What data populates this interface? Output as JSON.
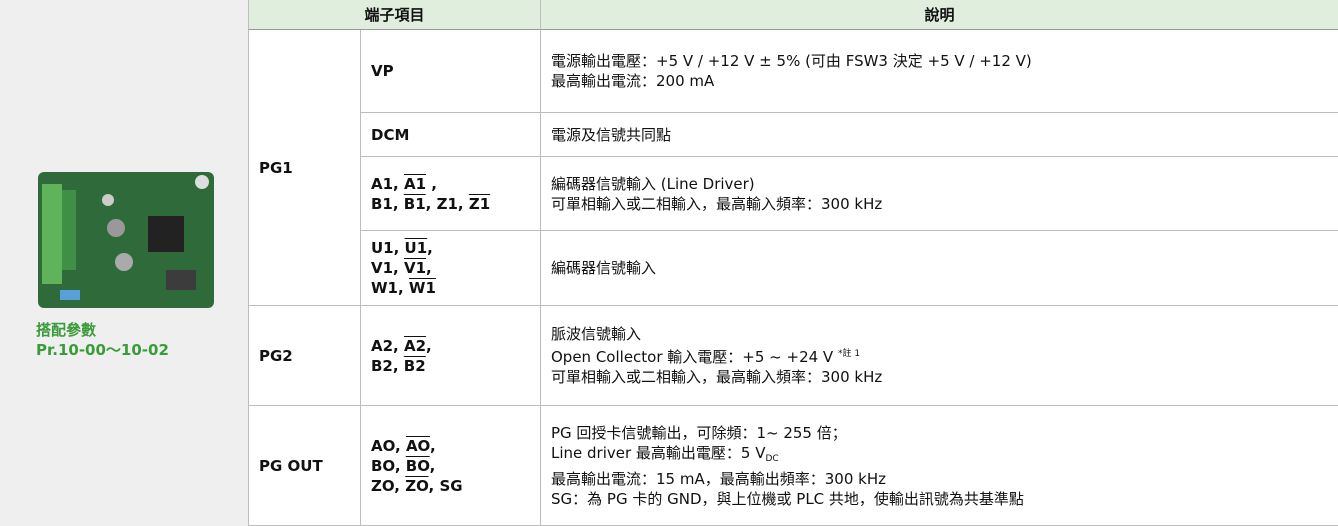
{
  "header": {
    "terminal": "端子項目",
    "description": "說明"
  },
  "side": {
    "caption": [
      "搭配參數",
      "Pr.10-00～10-02"
    ]
  },
  "groups": [
    {
      "name": "PG1",
      "rows": [
        {
          "terminal": [
            [
              {
                "text": "VP"
              }
            ]
          ],
          "description": [
            [
              {
                "text": "電源輸出電壓：+5 V / +12 V ± 5% (可由 FSW3 決定 +5 V / +12 V)"
              }
            ],
            [
              {
                "text": "最高輸出電流：200 mA"
              }
            ]
          ]
        },
        {
          "terminal": [
            [
              {
                "text": "DCM"
              }
            ]
          ],
          "description": [
            [
              {
                "text": "電源及信號共同點"
              }
            ]
          ]
        },
        {
          "terminal": [
            [
              {
                "text": "A1, "
              },
              {
                "text": "A1",
                "style": "bar"
              },
              {
                "text": " ,"
              }
            ],
            [
              {
                "text": "B1, "
              },
              {
                "text": "B1",
                "style": "bar"
              },
              {
                "text": ", Z1, "
              },
              {
                "text": "Z1",
                "style": "bar"
              }
            ]
          ],
          "description": [
            [
              {
                "text": "編碼器信號輸入 (Line Driver)"
              }
            ],
            [
              {
                "text": "可單相輸入或二相輸入，最高輸入頻率：300 kHz"
              }
            ]
          ]
        },
        {
          "terminal": [
            [
              {
                "text": "U1, "
              },
              {
                "text": "U1",
                "style": "bar"
              },
              {
                "text": ","
              }
            ],
            [
              {
                "text": "V1, "
              },
              {
                "text": "V1",
                "style": "bar"
              },
              {
                "text": ","
              }
            ],
            [
              {
                "text": "W1, "
              },
              {
                "text": "W1",
                "style": "bar"
              }
            ]
          ],
          "description": [
            [
              {
                "text": "編碼器信號輸入"
              }
            ]
          ]
        }
      ]
    },
    {
      "name": "PG2",
      "rows": [
        {
          "terminal": [
            [
              {
                "text": "A2, "
              },
              {
                "text": "A2",
                "style": "bar"
              },
              {
                "text": ","
              }
            ],
            [
              {
                "text": "B2, "
              },
              {
                "text": "B2",
                "style": "bar"
              }
            ]
          ],
          "description": [
            [
              {
                "text": "脈波信號輸入"
              }
            ],
            [
              {
                "text": "Open Collector 輸入電壓：+5 ~ +24 V "
              },
              {
                "text": "*註 1",
                "style": "sup"
              }
            ],
            [
              {
                "text": "可單相輸入或二相輸入，最高輸入頻率：300 kHz"
              }
            ]
          ]
        }
      ]
    },
    {
      "name": "PG OUT",
      "rows": [
        {
          "terminal": [
            [
              {
                "text": "AO, "
              },
              {
                "text": "AO",
                "style": "bar"
              },
              {
                "text": ","
              }
            ],
            [
              {
                "text": "BO, "
              },
              {
                "text": "BO",
                "style": "bar"
              },
              {
                "text": ","
              }
            ],
            [
              {
                "text": "ZO, "
              },
              {
                "text": "ZO",
                "style": "bar"
              },
              {
                "text": ", SG"
              }
            ]
          ],
          "description": [
            [
              {
                "text": "PG 回授卡信號輸出，可除頻：1~ 255 倍；"
              }
            ],
            [
              {
                "text": "Line driver 最高輸出電壓：5 V"
              },
              {
                "text": "DC",
                "style": "sub"
              }
            ],
            [
              {
                "text": "最高輸出電流：15 mA，最高輸出頻率：300 kHz"
              }
            ],
            [
              {
                "text": "SG：為 PG 卡的 GND，與上位機或 PLC 共地，使輸出訊號為共基準點"
              }
            ]
          ]
        }
      ]
    }
  ]
}
